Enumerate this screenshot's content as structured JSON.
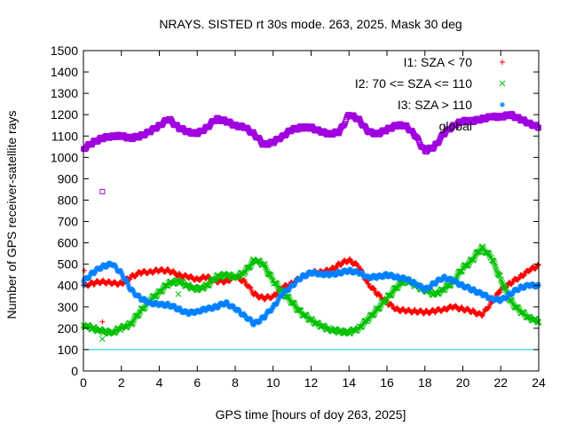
{
  "chart_data": {
    "type": "scatter",
    "title": "NRAYS. SISTED rt 30s mode. 263, 2025. Mask 30 deg",
    "xlabel": "GPS time [hours of doy 263, 2025]",
    "ylabel": "Number of GPS receiver-satellite rays",
    "xlim": [
      0,
      24
    ],
    "ylim": [
      0,
      1500
    ],
    "xticks": [
      "0",
      "2",
      "4",
      "6",
      "8",
      "10",
      "12",
      "14",
      "16",
      "18",
      "20",
      "22",
      "24"
    ],
    "yticks": [
      "0",
      "100",
      "200",
      "300",
      "400",
      "500",
      "600",
      "700",
      "800",
      "900",
      "1000",
      "1100",
      "1200",
      "1300",
      "1400",
      "1500"
    ],
    "grid": false,
    "legend_position": "top-right",
    "reference_line": {
      "y": 100,
      "color": "#00c0c0"
    },
    "series": [
      {
        "name": "I1: SZA < 70",
        "color": "#ff0000",
        "marker": "+",
        "x": [
          0,
          0.5,
          1,
          1.5,
          2,
          2.5,
          3,
          3.5,
          4,
          4.5,
          5,
          5.5,
          6,
          6.5,
          7,
          7.5,
          8,
          8.5,
          9,
          9.5,
          10,
          10.5,
          11,
          11.5,
          12,
          12.5,
          13,
          13.5,
          14,
          14.5,
          15,
          15.5,
          16,
          16.5,
          17,
          17.5,
          18,
          18.5,
          19,
          19.5,
          20,
          20.5,
          21,
          21.5,
          22,
          22.5,
          23,
          23.5,
          24
        ],
        "y": [
          400,
          410,
          420,
          410,
          410,
          440,
          460,
          465,
          470,
          470,
          450,
          440,
          430,
          440,
          420,
          420,
          440,
          420,
          360,
          340,
          350,
          390,
          410,
          440,
          460,
          465,
          470,
          500,
          520,
          490,
          410,
          360,
          320,
          290,
          280,
          280,
          275,
          280,
          290,
          300,
          290,
          280,
          260,
          320,
          380,
          410,
          440,
          470,
          495
        ]
      },
      {
        "name": "I2: 70 <= SZA <= 110",
        "color": "#00c000",
        "marker": "x",
        "x": [
          0,
          0.5,
          1,
          1.5,
          2,
          2.5,
          3,
          3.5,
          4,
          4.5,
          5,
          5.5,
          6,
          6.5,
          7,
          7.5,
          8,
          8.5,
          9,
          9.5,
          10,
          10.5,
          11,
          11.5,
          12,
          12.5,
          13,
          13.5,
          14,
          14.5,
          15,
          15.5,
          16,
          16.5,
          17,
          17.5,
          18,
          18.5,
          19,
          19.5,
          20,
          20.5,
          21,
          21.5,
          22,
          22.5,
          23,
          23.5,
          24
        ],
        "y": [
          215,
          200,
          185,
          180,
          200,
          220,
          280,
          330,
          370,
          410,
          420,
          400,
          380,
          400,
          440,
          450,
          440,
          460,
          520,
          500,
          420,
          370,
          320,
          270,
          240,
          210,
          195,
          185,
          180,
          200,
          240,
          290,
          340,
          390,
          430,
          400,
          380,
          360,
          380,
          420,
          480,
          520,
          580,
          530,
          430,
          330,
          280,
          250,
          230
        ]
      },
      {
        "name": "I3: SZA > 110",
        "color": "#0080ff",
        "marker": "*",
        "x": [
          0,
          0.5,
          1,
          1.5,
          2,
          2.5,
          3,
          3.5,
          4,
          4.5,
          5,
          5.5,
          6,
          6.5,
          7,
          7.5,
          8,
          8.5,
          9,
          9.5,
          10,
          10.5,
          11,
          11.5,
          12,
          12.5,
          13,
          13.5,
          14,
          14.5,
          15,
          15.5,
          16,
          16.5,
          17,
          17.5,
          18,
          18.5,
          19,
          19.5,
          20,
          20.5,
          21,
          21.5,
          22,
          22.5,
          23,
          23.5,
          24
        ],
        "y": [
          420,
          460,
          490,
          500,
          460,
          380,
          340,
          320,
          310,
          310,
          290,
          270,
          280,
          290,
          300,
          320,
          290,
          260,
          220,
          250,
          300,
          360,
          400,
          440,
          460,
          455,
          450,
          460,
          470,
          460,
          440,
          440,
          450,
          440,
          430,
          410,
          380,
          410,
          440,
          420,
          400,
          380,
          360,
          340,
          330,
          360,
          390,
          400,
          400
        ]
      },
      {
        "name": "global",
        "color": "#a000e0",
        "marker": "square",
        "x": [
          0,
          0.5,
          1,
          1.5,
          2,
          2.5,
          3,
          3.5,
          4,
          4.5,
          5,
          5.5,
          6,
          6.5,
          7,
          7.5,
          8,
          8.5,
          9,
          9.5,
          10,
          10.5,
          11,
          11.5,
          12,
          12.5,
          13,
          13.5,
          14,
          14.5,
          15,
          15.5,
          16,
          16.5,
          17,
          17.5,
          18,
          18.5,
          19,
          19.5,
          20,
          20.5,
          21,
          21.5,
          22,
          22.5,
          23,
          23.5,
          24
        ],
        "y": [
          1040,
          1070,
          1090,
          1100,
          1100,
          1090,
          1100,
          1120,
          1150,
          1180,
          1140,
          1120,
          1110,
          1140,
          1180,
          1170,
          1150,
          1140,
          1110,
          1060,
          1070,
          1100,
          1130,
          1140,
          1140,
          1120,
          1110,
          1120,
          1200,
          1180,
          1120,
          1110,
          1130,
          1150,
          1150,
          1100,
          1030,
          1050,
          1110,
          1150,
          1170,
          1170,
          1180,
          1190,
          1190,
          1200,
          1180,
          1160,
          1140
        ]
      }
    ],
    "outliers": [
      {
        "series": "global",
        "x": 1.0,
        "y": 840
      },
      {
        "series": "I1: SZA < 70",
        "x": 0.05,
        "y": 470
      },
      {
        "series": "I1: SZA < 70",
        "x": 1.0,
        "y": 230
      },
      {
        "series": "I2: 70 <= SZA <= 110",
        "x": 1.0,
        "y": 150
      },
      {
        "series": "I2: 70 <= SZA <= 110",
        "x": 5.0,
        "y": 360
      },
      {
        "series": "I3: SZA > 110",
        "x": 0.05,
        "y": 400
      }
    ]
  }
}
